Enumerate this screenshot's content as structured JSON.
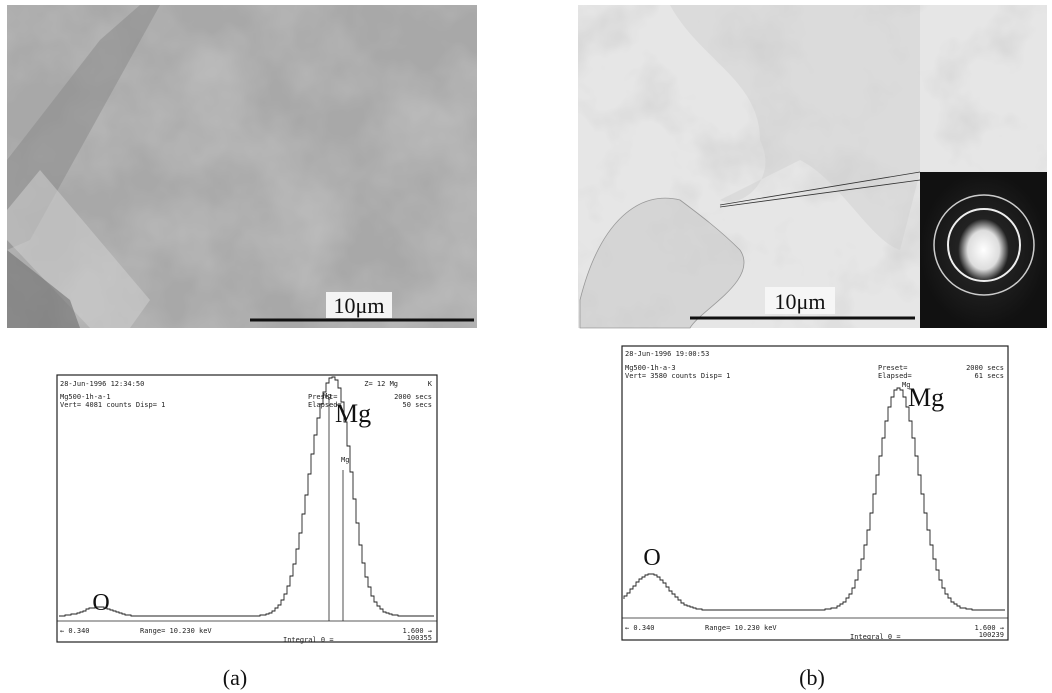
{
  "panels": [
    {
      "micrograph": {
        "scale_label": "10μm"
      },
      "spectrum": {
        "timestamp": "28-Jun-1996 12:34:50",
        "element_info": "Z= 12 Mg",
        "line": "K",
        "sample": "Mg500-1h-a-1",
        "vert": "Vert=   4081 counts  Disp= 1",
        "preset_label": "Preset=",
        "preset_value": "2000 secs",
        "elapsed_label": "Elapsed=",
        "elapsed_value": "50 secs",
        "peak_small_label": "Mg",
        "peak_small_label_2": "Mg",
        "peak_big_label": "Mg",
        "o_label": "O",
        "left_marker": "←   0.340",
        "range": "Range=  10.230 keV",
        "right_marker": "1.600 →",
        "integral": "Integral 0  =",
        "integral_value": "100355"
      },
      "caption": "(a)"
    },
    {
      "micrograph": {
        "scale_label": "10μm"
      },
      "spectrum": {
        "timestamp": "28-Jun-1996 19:00:53",
        "sample": "Mg500-1h-a-3",
        "vert": "Vert=   3580 counts  Disp= 1",
        "preset_label": "Preset=",
        "preset_value": "2000 secs",
        "elapsed_label": "Elapsed=",
        "elapsed_value": "61 secs",
        "peak_small_label": "Mg",
        "peak_big_label": "Mg",
        "o_label": "O",
        "left_marker": "←   0.340",
        "range": "Range=  10.230 keV",
        "right_marker": "1.600 →",
        "integral": "Integral 0  =",
        "integral_value": "100239"
      },
      "caption": "(b)"
    }
  ]
}
